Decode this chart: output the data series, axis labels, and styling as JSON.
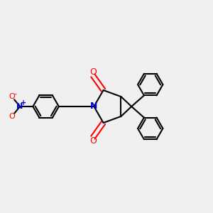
{
  "bg_color": "#f0f0f0",
  "bond_color": "#000000",
  "n_color": "#0000cc",
  "o_color": "#ff0000",
  "line_width": 1.5,
  "figsize": [
    3.0,
    3.0
  ],
  "dpi": 100,
  "xlim": [
    0,
    10
  ],
  "ylim": [
    0,
    10
  ]
}
